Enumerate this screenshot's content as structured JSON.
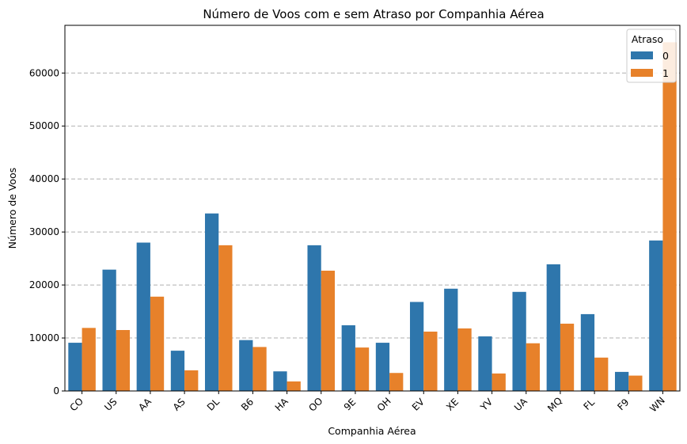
{
  "chart_data": {
    "type": "bar",
    "title": "Número de Voos com e sem Atraso por Companhia Aérea",
    "xlabel": "Companhia Aérea",
    "ylabel": "Número de Voos",
    "ylim": [
      0,
      69000
    ],
    "yticks": [
      0,
      10000,
      20000,
      30000,
      40000,
      50000,
      60000
    ],
    "grid": "y-dashed",
    "legend": {
      "title": "Atraso",
      "placement": "top-right"
    },
    "categories": [
      "CO",
      "US",
      "AA",
      "AS",
      "DL",
      "B6",
      "HA",
      "OO",
      "9E",
      "OH",
      "EV",
      "XE",
      "YV",
      "UA",
      "MQ",
      "FL",
      "F9",
      "WN"
    ],
    "series": [
      {
        "name": "0",
        "color": "#2e76ac",
        "values": [
          9100,
          22900,
          28000,
          7600,
          33500,
          9600,
          3700,
          27500,
          12400,
          9100,
          16800,
          19300,
          10300,
          18700,
          23900,
          14500,
          3600,
          28400
        ]
      },
      {
        "name": "1",
        "color": "#e7812a",
        "values": [
          11900,
          11500,
          17800,
          3900,
          27500,
          8300,
          1800,
          22700,
          8200,
          3400,
          11200,
          11800,
          3300,
          9000,
          12700,
          6300,
          2900,
          65800
        ]
      }
    ]
  }
}
